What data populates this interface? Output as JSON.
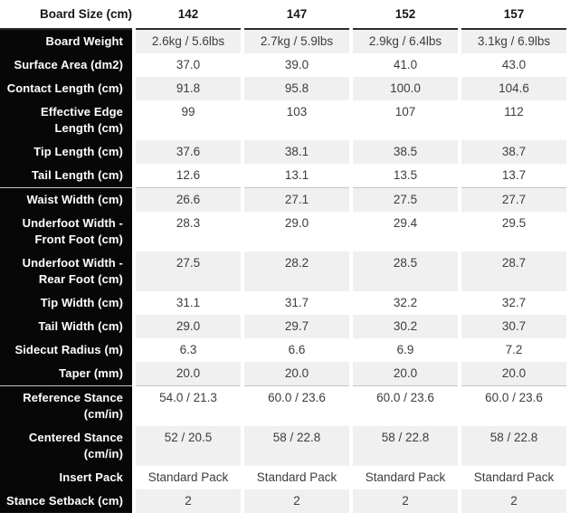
{
  "table": {
    "header": {
      "label": "Board Size (cm)",
      "values": [
        "142",
        "147",
        "152",
        "157"
      ]
    },
    "rows": [
      {
        "label": "Board Weight",
        "values": [
          "2.6kg / 5.6lbs",
          "2.7kg / 5.9lbs",
          "2.9kg / 6.4lbs",
          "3.1kg / 6.9lbs"
        ]
      },
      {
        "label": "Surface Area (dm2)",
        "values": [
          "37.0",
          "39.0",
          "41.0",
          "43.0"
        ]
      },
      {
        "label": "Contact Length (cm)",
        "values": [
          "91.8",
          "95.8",
          "100.0",
          "104.6"
        ]
      },
      {
        "label": "Effective Edge Length (cm)",
        "values": [
          "99",
          "103",
          "107",
          "112"
        ]
      },
      {
        "label": "Tip Length (cm)",
        "values": [
          "37.6",
          "38.1",
          "38.5",
          "38.7"
        ]
      },
      {
        "label": "Tail Length (cm)",
        "values": [
          "12.6",
          "13.1",
          "13.5",
          "13.7"
        ]
      },
      {
        "label": "Waist Width (cm)",
        "values": [
          "26.6",
          "27.1",
          "27.5",
          "27.7"
        ]
      },
      {
        "label": "Underfoot Width - Front Foot (cm)",
        "values": [
          "28.3",
          "29.0",
          "29.4",
          "29.5"
        ]
      },
      {
        "label": "Underfoot Width - Rear Foot (cm)",
        "values": [
          "27.5",
          "28.2",
          "28.5",
          "28.7"
        ]
      },
      {
        "label": "Tip Width (cm)",
        "values": [
          "31.1",
          "31.7",
          "32.2",
          "32.7"
        ]
      },
      {
        "label": "Tail Width (cm)",
        "values": [
          "29.0",
          "29.7",
          "30.2",
          "30.7"
        ]
      },
      {
        "label": "Sidecut Radius (m)",
        "values": [
          "6.3",
          "6.6",
          "6.9",
          "7.2"
        ]
      },
      {
        "label": "Taper (mm)",
        "values": [
          "20.0",
          "20.0",
          "20.0",
          "20.0"
        ]
      },
      {
        "label": "Reference Stance (cm/in)",
        "values": [
          "54.0 / 21.3",
          "60.0 / 23.6",
          "60.0 / 23.6",
          "60.0 / 23.6"
        ]
      },
      {
        "label": "Centered Stance (cm/in)",
        "values": [
          "52 / 20.5",
          "58 / 22.8",
          "58 / 22.8",
          "58 / 22.8"
        ]
      },
      {
        "label": "Insert Pack",
        "values": [
          "Standard Pack",
          "Standard Pack",
          "Standard Pack",
          "Standard Pack"
        ]
      },
      {
        "label": "Stance Setback (cm)",
        "values": [
          "2",
          "2",
          "2",
          "2"
        ]
      }
    ],
    "colors": {
      "label_column_bg": "#070707",
      "label_text": "#ffffff",
      "shaded_row_bg": "#f0f0f1",
      "data_text": "#3d3d3d",
      "header_divider": "#2b2b2b",
      "group_divider": "#c5c5c5"
    }
  }
}
